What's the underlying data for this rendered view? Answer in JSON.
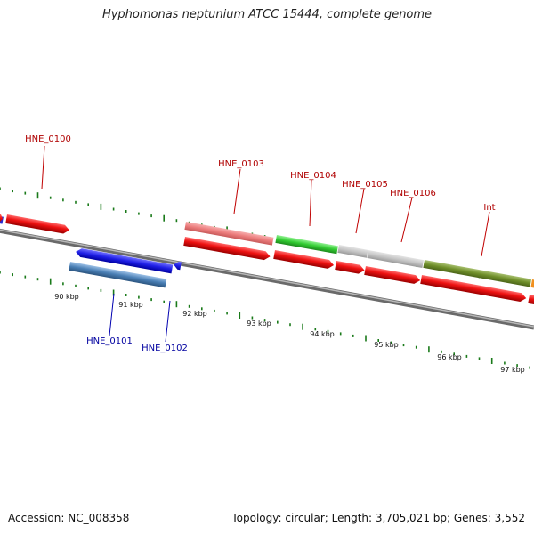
{
  "title": "Hyphomonas neptunium ATCC 15444, complete genome",
  "accession": "Accession: NC_008358",
  "topology": "Topology: circular; Length: 3,705,021 bp; Genes: 3,552",
  "scale_labels": [
    "90 kbp",
    "91 kbp",
    "92 kbp",
    "93 kbp",
    "94 kbp",
    "95 kbp",
    "96 kbp",
    "97 kbp"
  ],
  "colors": {
    "backbone": "#8a8a8a",
    "ticks": "#1a7a1a",
    "forward_label": "#b00000",
    "reverse_label": "#0000a0",
    "cds": "#ee1111",
    "rev_gene": "#2222ee",
    "rev_cds": "#4a7fb5"
  },
  "gene_labels_forward": [
    "HNE_0100",
    "HNE_0103",
    "HNE_0104",
    "HNE_0105",
    "HNE_0106",
    "Int"
  ],
  "gene_labels_reverse": [
    "HNE_0101",
    "HNE_0102"
  ]
}
